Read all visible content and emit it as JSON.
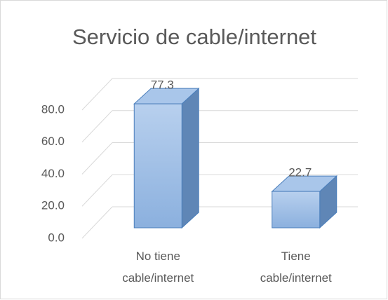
{
  "chart_data": {
    "type": "bar3d",
    "title": "Servicio de cable/internet",
    "categories": [
      "No tiene cable/internet",
      "Tiene cable/internet"
    ],
    "values": [
      77.3,
      22.7
    ],
    "color": "#9dbde6",
    "ylim": [
      0,
      80
    ],
    "yticks": [
      {
        "value": 0,
        "label": "0.0"
      },
      {
        "value": 20,
        "label": "20.0"
      },
      {
        "value": 40,
        "label": "40.0"
      },
      {
        "value": 60,
        "label": "60.0"
      },
      {
        "value": 80,
        "label": "80.0"
      }
    ],
    "grid": true
  }
}
